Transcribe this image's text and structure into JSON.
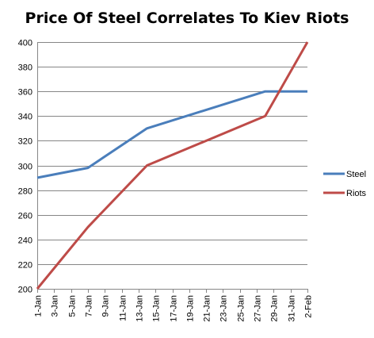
{
  "chart_data": {
    "type": "line",
    "title": "Price Of Steel Correlates To Kiev Riots",
    "xlabel": "",
    "ylabel": "",
    "categories": [
      "1-Jan",
      "3-Jan",
      "5-Jan",
      "7-Jan",
      "9-Jan",
      "11-Jan",
      "13-Jan",
      "15-Jan",
      "17-Jan",
      "19-Jan",
      "21-Jan",
      "23-Jan",
      "25-Jan",
      "27-Jan",
      "29-Jan",
      "31-Jan",
      "2-Feb"
    ],
    "ylim": [
      200,
      400
    ],
    "yticks": [
      200,
      220,
      240,
      260,
      280,
      300,
      320,
      340,
      360,
      380,
      400
    ],
    "grid": "horizontal",
    "legend_position": "right",
    "series": [
      {
        "name": "Steel",
        "color": "#4a7ebb",
        "points": [
          {
            "x": "1-Jan",
            "y": 290
          },
          {
            "x": "7-Jan",
            "y": 298
          },
          {
            "x": "14-Jan",
            "y": 330
          },
          {
            "x": "28-Jan",
            "y": 360
          },
          {
            "x": "2-Feb",
            "y": 360
          }
        ]
      },
      {
        "name": "Riots",
        "color": "#be4b48",
        "points": [
          {
            "x": "1-Jan",
            "y": 200
          },
          {
            "x": "7-Jan",
            "y": 250
          },
          {
            "x": "14-Jan",
            "y": 300
          },
          {
            "x": "28-Jan",
            "y": 340
          },
          {
            "x": "2-Feb",
            "y": 400
          }
        ]
      }
    ]
  }
}
